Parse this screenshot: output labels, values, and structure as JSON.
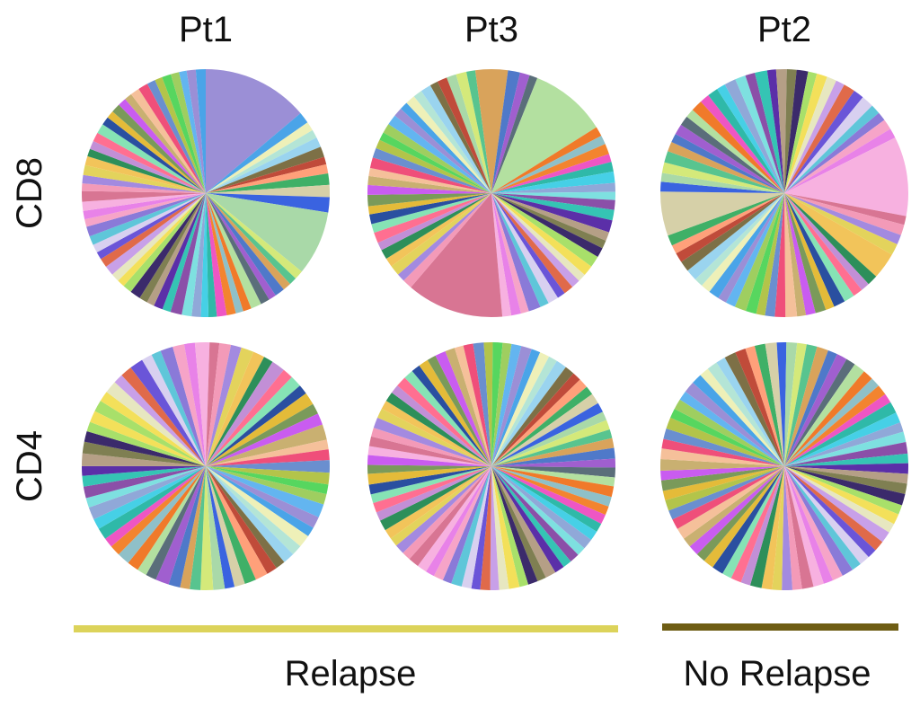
{
  "columns": [
    "Pt1",
    "Pt3",
    "Pt2"
  ],
  "rows": [
    "CD8",
    "CD4"
  ],
  "groups": [
    {
      "label": "Relapse",
      "color": "#dcd35a",
      "columns": [
        "Pt1",
        "Pt3"
      ]
    },
    {
      "label": "No Relapse",
      "color": "#6e5d14",
      "columns": [
        "Pt2"
      ]
    }
  ],
  "chart_data": [
    {
      "type": "pie",
      "row": "CD8",
      "column": "Pt1",
      "group": "Relapse",
      "values": [
        14,
        1.5,
        1.2,
        1.1,
        1.3,
        1.4,
        1.0,
        1.2,
        1.5,
        1.6,
        2.0,
        8.5,
        1.2,
        1.0,
        1.1,
        1.3,
        1.0,
        1.2,
        1.4,
        1.1,
        1.0,
        1.2,
        1.3,
        1.1,
        1.0,
        1.2,
        1.3,
        1.5,
        1.1,
        1.2,
        1.0,
        1.1,
        1.4,
        1.2,
        1.0,
        1.1,
        1.3,
        1.2,
        1.0,
        1.1,
        1.2,
        1.3,
        1.0,
        1.1,
        1.2,
        1.4,
        1.0,
        1.1,
        1.3,
        1.2,
        1.0,
        1.1,
        1.2,
        1.3,
        1.1,
        1.0,
        1.2,
        1.1,
        1.0,
        1.2,
        1.3,
        1.1,
        1.0,
        1.2,
        1.1,
        1.0,
        1.2,
        1.3
      ]
    },
    {
      "type": "pie",
      "row": "CD8",
      "column": "Pt3",
      "group": "Relapse",
      "values": [
        1.2,
        1.3,
        1.1,
        4.0,
        1.5,
        1.2,
        1.0,
        9.5,
        1.2,
        1.1,
        1.3,
        1.0,
        1.2,
        1.4,
        1.1,
        1.0,
        1.2,
        1.3,
        1.5,
        1.1,
        1.0,
        1.2,
        1.4,
        1.3,
        1.0,
        1.1,
        1.2,
        1.0,
        1.3,
        1.1,
        1.5,
        1.0,
        1.2,
        1.1,
        12.0,
        1.2,
        1.0,
        1.3,
        1.1,
        1.2,
        1.0,
        1.3,
        1.1,
        1.2,
        1.0,
        1.4,
        1.2,
        1.1,
        1.0,
        1.3,
        1.2,
        1.1,
        1.0,
        1.2,
        1.3,
        1.1,
        1.0,
        1.2,
        1.1,
        1.3,
        1.0,
        1.2
      ]
    },
    {
      "type": "pie",
      "row": "CD8",
      "column": "Pt2",
      "group": "No Relapse",
      "values": [
        1.1,
        1.2,
        1.0,
        1.3,
        1.2,
        1.1,
        1.4,
        1.0,
        1.2,
        1.1,
        1.3,
        1.0,
        1.2,
        1.1,
        1.0,
        1.3,
        1.2,
        1.4,
        1.1,
        1.0,
        1.2,
        1.1,
        9.0,
        1.0,
        1.2,
        1.1,
        1.3,
        3.0,
        1.2,
        1.0,
        1.1,
        1.2,
        1.3,
        1.0,
        1.2,
        1.1,
        1.0,
        1.3,
        1.2,
        1.1,
        1.0,
        1.2,
        1.3,
        1.1,
        1.0,
        1.2,
        1.1,
        1.0,
        1.3,
        1.2,
        1.1,
        1.0,
        1.2,
        5.0,
        1.1,
        1.0,
        1.2,
        1.3,
        1.1,
        1.0,
        1.2,
        1.1,
        1.0,
        1.3
      ]
    },
    {
      "type": "pie",
      "row": "CD4",
      "column": "Pt1",
      "group": "Relapse",
      "values": [
        1.2,
        1.1,
        1.3,
        1.0,
        1.2,
        1.4,
        1.1,
        1.0,
        1.3,
        1.2,
        1.1,
        1.5,
        1.0,
        1.2,
        1.1,
        1.3,
        1.2,
        1.0,
        1.4,
        1.1,
        1.2,
        1.0,
        1.3,
        1.1,
        1.2,
        1.6,
        1.0,
        1.1,
        1.3,
        1.2,
        1.0,
        1.1,
        1.4,
        1.2,
        1.0,
        1.3,
        1.1,
        1.2,
        1.0,
        1.1,
        1.3,
        1.2,
        1.1,
        1.0,
        1.2,
        1.3,
        1.1,
        1.0,
        1.2,
        1.4,
        1.1,
        1.0,
        1.2,
        1.3,
        1.1,
        1.0,
        1.2,
        1.1,
        1.3,
        1.0,
        1.2,
        1.1,
        1.0,
        1.3,
        1.2,
        1.1,
        1.0,
        1.2
      ]
    },
    {
      "type": "pie",
      "row": "CD4",
      "column": "Pt3",
      "group": "Relapse",
      "values": [
        1.0,
        1.1,
        1.0,
        1.2,
        1.1,
        1.0,
        1.1,
        1.0,
        1.2,
        1.1,
        1.0,
        1.1,
        1.0,
        1.2,
        1.1,
        1.0,
        1.1,
        1.2,
        1.0,
        1.1,
        1.0,
        1.1,
        1.2,
        1.0,
        1.1,
        1.0,
        1.2,
        1.1,
        1.0,
        1.1,
        1.0,
        1.2,
        1.1,
        1.0,
        1.1,
        1.0,
        1.1,
        1.2,
        1.0,
        1.1,
        1.0,
        1.2,
        1.1,
        1.0,
        1.1,
        1.0,
        1.1,
        1.2,
        1.0,
        1.1,
        1.0,
        1.1,
        1.2,
        1.0,
        1.1,
        1.0,
        1.2,
        1.1,
        1.0,
        1.1,
        1.0,
        1.1,
        1.2,
        1.0,
        1.1,
        1.0,
        1.1,
        1.2,
        1.0,
        1.1,
        1.0,
        1.1,
        1.2,
        1.0,
        1.1,
        1.0,
        1.1,
        1.2,
        1.0,
        1.1
      ]
    },
    {
      "type": "pie",
      "row": "CD4",
      "column": "Pt2",
      "group": "No Relapse",
      "values": [
        1.0,
        1.1,
        1.0,
        1.2,
        1.1,
        1.0,
        1.1,
        1.2,
        1.0,
        1.1,
        1.0,
        1.2,
        1.1,
        1.0,
        1.1,
        1.0,
        1.2,
        1.1,
        1.0,
        1.1,
        1.2,
        1.0,
        1.1,
        1.0,
        1.1,
        1.2,
        1.0,
        1.1,
        1.0,
        1.2,
        1.1,
        1.0,
        1.1,
        1.0,
        1.2,
        1.1,
        1.0,
        1.1,
        1.2,
        1.0,
        1.1,
        1.0,
        1.1,
        1.2,
        1.0,
        1.1,
        1.0,
        1.2,
        1.1,
        1.0,
        1.1,
        1.0,
        1.2,
        1.1,
        1.0,
        1.1,
        1.2,
        1.0,
        1.1,
        1.0,
        1.1,
        1.2,
        1.0,
        1.1,
        1.0,
        1.2,
        1.1,
        1.0,
        1.1,
        1.0,
        1.2,
        1.1,
        1.0,
        1.1
      ]
    }
  ],
  "palette": [
    "#9b8fd6",
    "#f07a2a",
    "#6a55d8",
    "#c95cf0",
    "#3a63e0",
    "#5b2fa8",
    "#e3d35c",
    "#4aa4e8",
    "#8fc0c8",
    "#d8d0f0",
    "#c9b071",
    "#a9d9a8",
    "#b59f86",
    "#f2c45a",
    "#eef0b8",
    "#f3842f",
    "#5fc6d9",
    "#f5c09a",
    "#d4e97a",
    "#7f7f52",
    "#2d8f5a",
    "#b4e5d6",
    "#ee56c4",
    "#8a7ad8",
    "#ef4f7a",
    "#58c48f",
    "#3b2a6b",
    "#c28fd6",
    "#9ad4ef",
    "#2fb9a8",
    "#f6a4c8",
    "#6a8fcf",
    "#d9a35b",
    "#a8e06a",
    "#ff6f91",
    "#7d7046",
    "#46d0e6",
    "#e882e8",
    "#b3c44a",
    "#4f79c9",
    "#f3e05a",
    "#86e3b5",
    "#c04b3a",
    "#90a8d8",
    "#f7b1e0",
    "#57d65f",
    "#a05fcf",
    "#e7e7c0",
    "#2a4fa0",
    "#ffa07a",
    "#7ee0e0",
    "#d87593",
    "#9fce60",
    "#5a6e7a",
    "#c8a0e8",
    "#e4bb39",
    "#3fb067",
    "#8b4fa8",
    "#f39ab8",
    "#63b5f0",
    "#b3e0a0",
    "#e06a4a",
    "#7a9a5a",
    "#d6d0a8",
    "#35c4b4",
    "#a38ae0"
  ]
}
